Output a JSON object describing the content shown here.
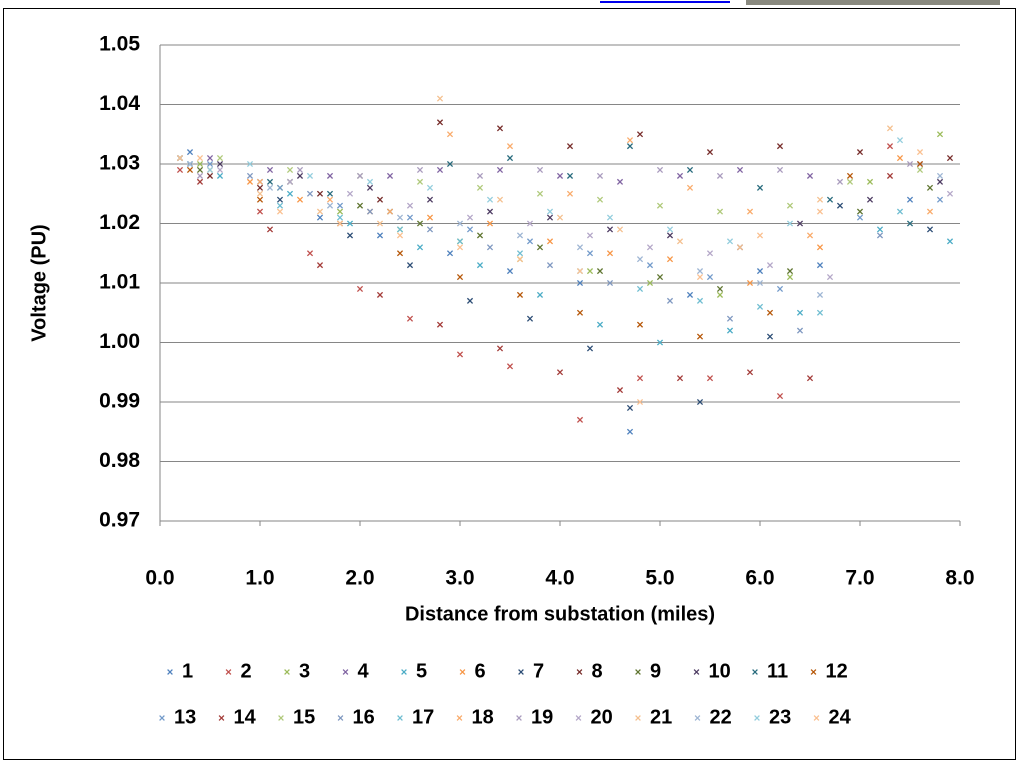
{
  "chart_data": {
    "type": "scatter",
    "x_label": "Distance from substation (miles)",
    "y_label": "Voltage (PU)",
    "xlim": [
      0,
      8
    ],
    "ylim": [
      0.97,
      1.05
    ],
    "xticks": [
      {
        "value": 0,
        "label": "0.0"
      },
      {
        "value": 1,
        "label": "1.0"
      },
      {
        "value": 2,
        "label": "2.0"
      },
      {
        "value": 3,
        "label": "3.0"
      },
      {
        "value": 4,
        "label": "4.0"
      },
      {
        "value": 5,
        "label": "5.0"
      },
      {
        "value": 6,
        "label": "6.0"
      },
      {
        "value": 7,
        "label": "7.0"
      },
      {
        "value": 8,
        "label": "8.0"
      }
    ],
    "yticks": [
      0.97,
      0.98,
      0.99,
      {
        "value": 1,
        "label": "1.00"
      },
      1.01,
      1.02,
      1.03,
      1.04,
      1.05
    ],
    "grid": true,
    "legend": "bottom",
    "series": [
      {
        "name": "1",
        "color": "#4F81BD",
        "x": [
          0.3,
          1.0,
          1.6,
          2.2,
          2.9,
          3.5,
          4.2,
          4.7,
          5.3,
          6.0,
          6.6,
          7.5
        ],
        "values": [
          1.032,
          1.027,
          1.021,
          1.018,
          1.015,
          1.012,
          1.01,
          0.985,
          1.008,
          1.012,
          1.013,
          1.024
        ]
      },
      {
        "name": "2",
        "color": "#C0504D",
        "x": [
          0.2,
          1.0,
          1.5,
          2.0,
          2.5,
          3.0,
          3.5,
          4.2,
          4.8,
          5.5,
          6.2,
          7.3
        ],
        "values": [
          1.029,
          1.022,
          1.015,
          1.009,
          1.004,
          0.998,
          0.996,
          0.987,
          0.994,
          0.994,
          0.991,
          1.033
        ]
      },
      {
        "name": "3",
        "color": "#9BBB59",
        "x": [
          0.4,
          1.2,
          1.8,
          2.4,
          3.0,
          3.6,
          4.3,
          4.9,
          5.6,
          6.3,
          7.1,
          7.8
        ],
        "values": [
          1.03,
          1.026,
          1.022,
          1.019,
          1.017,
          1.014,
          1.012,
          1.01,
          1.008,
          1.011,
          1.027,
          1.035
        ]
      },
      {
        "name": "4",
        "color": "#8064A2",
        "x": [
          0.5,
          1.1,
          1.7,
          2.3,
          2.8,
          3.4,
          4.0,
          4.6,
          5.2,
          5.8,
          6.5,
          7.6
        ],
        "values": [
          1.031,
          1.029,
          1.028,
          1.028,
          1.029,
          1.029,
          1.028,
          1.027,
          1.028,
          1.029,
          1.028,
          1.03
        ]
      },
      {
        "name": "5",
        "color": "#4BACC6",
        "x": [
          0.6,
          1.3,
          1.9,
          2.6,
          3.2,
          3.8,
          4.4,
          5.0,
          5.7,
          6.4,
          7.2,
          7.9
        ],
        "values": [
          1.028,
          1.025,
          1.02,
          1.016,
          1.013,
          1.008,
          1.003,
          1.0,
          1.002,
          1.005,
          1.019,
          1.017
        ]
      },
      {
        "name": "6",
        "color": "#F79646",
        "x": [
          0.2,
          0.9,
          1.4,
          2.1,
          2.7,
          3.3,
          3.9,
          4.5,
          5.1,
          5.9,
          6.6,
          7.4
        ],
        "values": [
          1.031,
          1.027,
          1.024,
          1.022,
          1.021,
          1.02,
          1.017,
          1.015,
          1.014,
          1.01,
          1.016,
          1.031
        ]
      },
      {
        "name": "7",
        "color": "#2C4D75",
        "x": [
          0.3,
          1.2,
          1.9,
          2.5,
          3.1,
          3.7,
          4.3,
          4.7,
          5.4,
          6.1,
          6.8,
          7.7
        ],
        "values": [
          1.03,
          1.024,
          1.018,
          1.013,
          1.007,
          1.004,
          0.999,
          0.989,
          0.99,
          1.001,
          1.023,
          1.019
        ]
      },
      {
        "name": "8",
        "color": "#772C2A",
        "x": [
          0.5,
          1.0,
          1.6,
          2.2,
          2.8,
          3.4,
          4.1,
          4.8,
          5.5,
          6.2,
          7.0,
          7.9
        ],
        "values": [
          1.028,
          1.026,
          1.025,
          1.024,
          1.037,
          1.036,
          1.033,
          1.035,
          1.032,
          1.033,
          1.032,
          1.031
        ]
      },
      {
        "name": "9",
        "color": "#5F7530",
        "x": [
          0.4,
          1.3,
          2.0,
          2.6,
          3.2,
          3.8,
          4.4,
          5.0,
          5.6,
          6.3,
          7.0,
          7.7
        ],
        "values": [
          1.029,
          1.027,
          1.023,
          1.02,
          1.018,
          1.016,
          1.012,
          1.011,
          1.009,
          1.012,
          1.022,
          1.026
        ]
      },
      {
        "name": "10",
        "color": "#4D3B62",
        "x": [
          0.6,
          1.4,
          2.1,
          2.7,
          3.3,
          3.9,
          4.5,
          5.1,
          5.8,
          6.4,
          7.1,
          7.8
        ],
        "values": [
          1.03,
          1.028,
          1.026,
          1.024,
          1.022,
          1.021,
          1.019,
          1.018,
          1.016,
          1.02,
          1.024,
          1.027
        ]
      },
      {
        "name": "11",
        "color": "#276A7C",
        "x": [
          0.2,
          1.1,
          1.7,
          2.3,
          2.9,
          3.5,
          4.1,
          4.7,
          5.3,
          6.0,
          6.7,
          7.5
        ],
        "values": [
          1.031,
          1.027,
          1.025,
          1.022,
          1.03,
          1.031,
          1.028,
          1.033,
          1.029,
          1.026,
          1.024,
          1.02
        ]
      },
      {
        "name": "12",
        "color": "#B65708",
        "x": [
          0.3,
          1.0,
          1.8,
          2.4,
          3.0,
          3.6,
          4.2,
          4.8,
          5.4,
          6.1,
          6.9,
          7.6
        ],
        "values": [
          1.029,
          1.024,
          1.02,
          1.015,
          1.011,
          1.008,
          1.005,
          1.003,
          1.001,
          1.005,
          1.028,
          1.03
        ]
      },
      {
        "name": "13",
        "color": "#729ACA",
        "x": [
          0.5,
          1.2,
          1.8,
          2.5,
          3.1,
          3.7,
          4.3,
          4.9,
          5.5,
          6.2,
          7.0,
          7.8
        ],
        "values": [
          1.03,
          1.026,
          1.023,
          1.021,
          1.019,
          1.017,
          1.015,
          1.013,
          1.011,
          1.009,
          1.021,
          1.024
        ]
      },
      {
        "name": "14",
        "color": "#A33B38",
        "x": [
          0.4,
          1.1,
          1.6,
          2.2,
          2.8,
          3.4,
          4.0,
          4.6,
          5.2,
          5.9,
          6.5,
          7.3
        ],
        "values": [
          1.027,
          1.019,
          1.013,
          1.008,
          1.003,
          0.999,
          0.995,
          0.992,
          0.994,
          0.995,
          0.994,
          1.028
        ]
      },
      {
        "name": "15",
        "color": "#AFC97A",
        "x": [
          0.6,
          1.3,
          2.0,
          2.6,
          3.2,
          3.8,
          4.4,
          5.0,
          5.6,
          6.3,
          6.9,
          7.6
        ],
        "values": [
          1.031,
          1.029,
          1.028,
          1.027,
          1.026,
          1.025,
          1.024,
          1.023,
          1.022,
          1.023,
          1.027,
          1.029
        ]
      },
      {
        "name": "16",
        "color": "#7F98C0",
        "x": [
          0.2,
          0.9,
          1.5,
          2.1,
          2.7,
          3.3,
          3.9,
          4.5,
          5.1,
          5.7,
          6.4,
          7.2
        ],
        "values": [
          1.031,
          1.028,
          1.025,
          1.022,
          1.019,
          1.016,
          1.013,
          1.01,
          1.007,
          1.004,
          1.002,
          1.018
        ]
      },
      {
        "name": "17",
        "color": "#6FBDD1",
        "x": [
          0.3,
          1.2,
          1.8,
          2.4,
          3.0,
          3.6,
          4.2,
          4.8,
          5.4,
          6.0,
          6.6,
          7.4
        ],
        "values": [
          1.03,
          1.023,
          1.021,
          1.019,
          1.017,
          1.015,
          1.012,
          1.009,
          1.007,
          1.006,
          1.005,
          1.022
        ]
      },
      {
        "name": "18",
        "color": "#F9AB6B",
        "x": [
          0.5,
          1.0,
          1.7,
          2.3,
          2.9,
          3.5,
          4.1,
          4.7,
          5.3,
          5.9,
          6.5,
          7.7
        ],
        "values": [
          1.029,
          1.027,
          1.024,
          1.022,
          1.035,
          1.033,
          1.025,
          1.034,
          1.026,
          1.022,
          1.018,
          1.022
        ]
      },
      {
        "name": "19",
        "color": "#A99BBD",
        "x": [
          0.4,
          1.4,
          2.0,
          2.6,
          3.2,
          3.8,
          4.4,
          5.0,
          5.6,
          6.2,
          6.8,
          7.5
        ],
        "values": [
          1.028,
          1.029,
          1.028,
          1.029,
          1.028,
          1.029,
          1.028,
          1.029,
          1.028,
          1.029,
          1.027,
          1.03
        ]
      },
      {
        "name": "20",
        "color": "#B4A7C8",
        "x": [
          0.6,
          1.3,
          1.9,
          2.5,
          3.1,
          3.7,
          4.3,
          4.9,
          5.5,
          6.1,
          6.7,
          7.9
        ],
        "values": [
          1.029,
          1.027,
          1.025,
          1.023,
          1.021,
          1.02,
          1.018,
          1.016,
          1.015,
          1.013,
          1.011,
          1.025
        ]
      },
      {
        "name": "21",
        "color": "#F4C08F",
        "x": [
          0.2,
          1.0,
          1.6,
          2.2,
          2.8,
          3.4,
          4.0,
          4.6,
          5.2,
          5.8,
          6.6,
          7.3
        ],
        "values": [
          1.031,
          1.025,
          1.022,
          1.02,
          1.041,
          1.024,
          1.021,
          1.019,
          1.017,
          1.016,
          1.024,
          1.036
        ]
      },
      {
        "name": "22",
        "color": "#9EB5D3",
        "x": [
          0.3,
          1.1,
          1.7,
          2.4,
          3.0,
          3.6,
          4.2,
          4.8,
          5.4,
          6.0,
          6.6,
          7.8
        ],
        "values": [
          1.03,
          1.026,
          1.023,
          1.021,
          1.02,
          1.018,
          1.016,
          1.014,
          1.012,
          1.01,
          1.008,
          1.028
        ]
      },
      {
        "name": "23",
        "color": "#93CDDD",
        "x": [
          0.5,
          0.9,
          1.5,
          2.1,
          2.7,
          3.3,
          3.9,
          4.5,
          5.1,
          5.7,
          6.3,
          7.4
        ],
        "values": [
          1.029,
          1.03,
          1.028,
          1.027,
          1.026,
          1.024,
          1.022,
          1.021,
          1.019,
          1.017,
          1.02,
          1.034
        ]
      },
      {
        "name": "24",
        "color": "#FAC090",
        "x": [
          0.4,
          1.2,
          1.8,
          2.4,
          3.0,
          3.6,
          4.2,
          4.8,
          5.4,
          6.0,
          6.6,
          7.6
        ],
        "values": [
          1.031,
          1.022,
          1.02,
          1.018,
          1.016,
          1.014,
          1.012,
          0.99,
          1.011,
          1.018,
          1.022,
          1.032
        ]
      }
    ]
  }
}
